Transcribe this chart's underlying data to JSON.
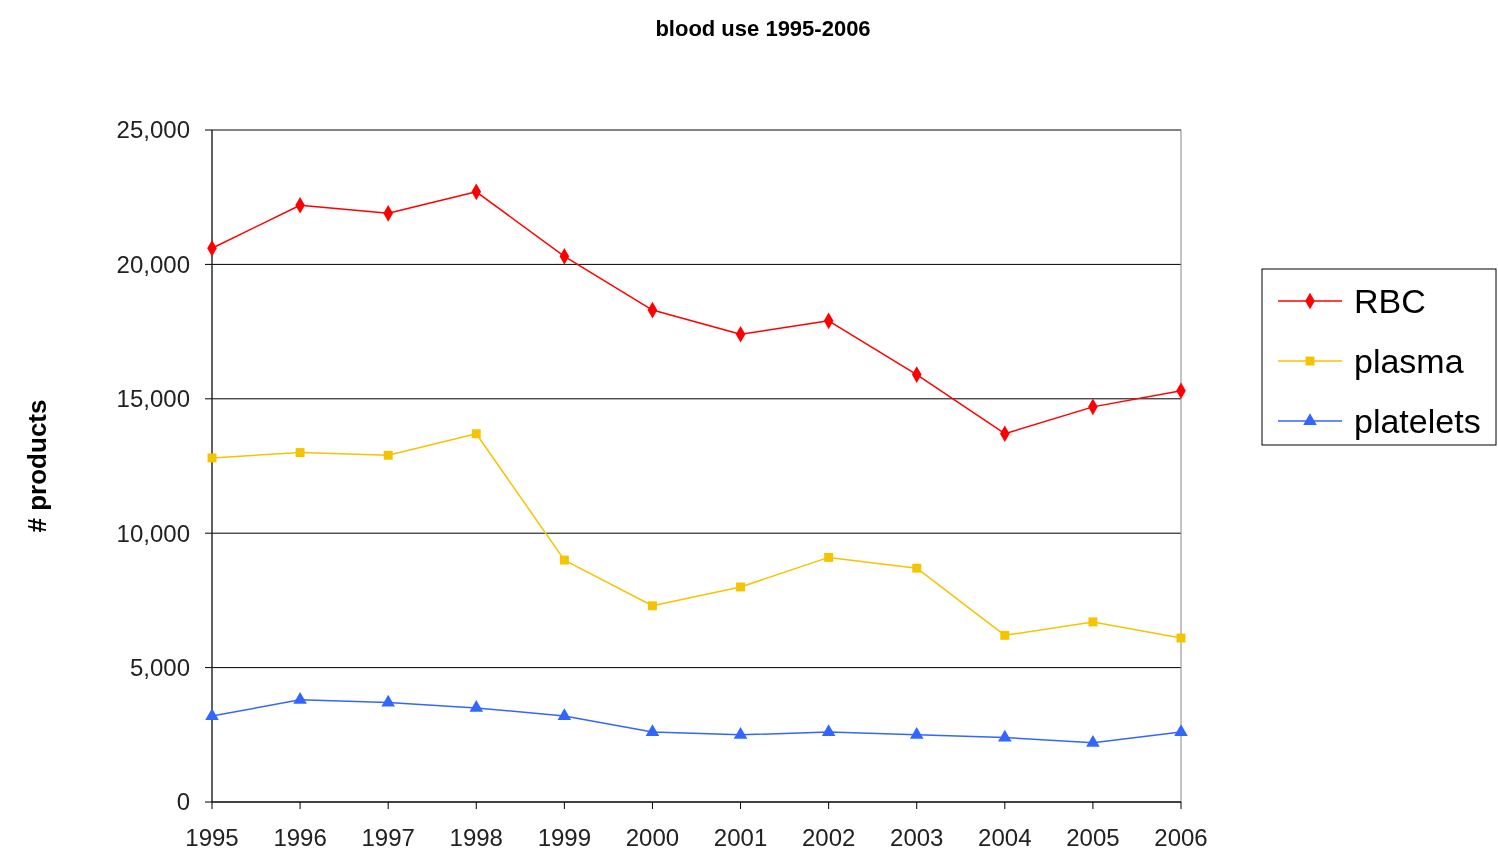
{
  "chart_data": {
    "type": "line",
    "title": "blood use 1995-2006",
    "ylabel": "# products",
    "categories": [
      "1995",
      "1996",
      "1997",
      "1998",
      "1999",
      "2000",
      "2001",
      "2002",
      "2003",
      "2004",
      "2005",
      "2006"
    ],
    "series": [
      {
        "name": "RBC",
        "color": "#ff0000",
        "marker": "diamond",
        "values": [
          20600,
          22200,
          21900,
          22700,
          20300,
          18300,
          17400,
          17900,
          15900,
          13700,
          14700,
          15300
        ]
      },
      {
        "name": "plasma",
        "color": "#f5c400",
        "marker": "square",
        "values": [
          12800,
          13000,
          12900,
          13700,
          9000,
          7300,
          8000,
          9100,
          8700,
          6200,
          6700,
          6100
        ]
      },
      {
        "name": "platelets",
        "color": "#3366ff",
        "marker": "triangle",
        "values": [
          3200,
          3800,
          3700,
          3500,
          3200,
          2600,
          2500,
          2600,
          2500,
          2400,
          2200,
          2600
        ]
      }
    ],
    "ylim": [
      0,
      25000
    ],
    "yticks": [
      {
        "value": 0,
        "label": "0"
      },
      {
        "value": 5000,
        "label": "5,000"
      },
      {
        "value": 10000,
        "label": "10,000"
      },
      {
        "value": 15000,
        "label": "15,000"
      },
      {
        "value": 20000,
        "label": "20,000"
      },
      {
        "value": 25000,
        "label": "25,000"
      }
    ],
    "grid": "y",
    "legend": "right",
    "line_style": "solid"
  }
}
